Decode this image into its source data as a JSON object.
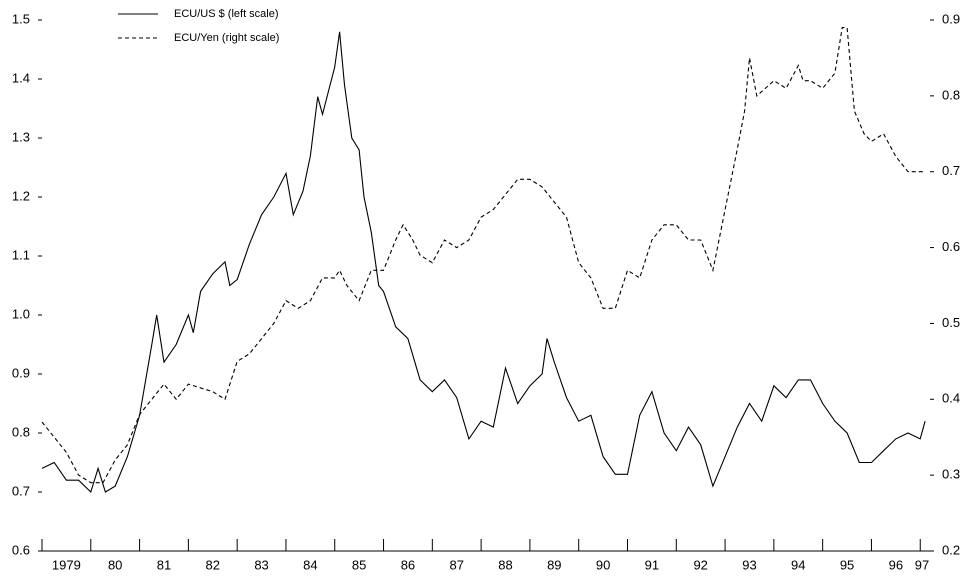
{
  "chart_data": {
    "type": "line",
    "series": [
      {
        "name": "ECU/US $ (left scale)",
        "color": "#000000",
        "linestyle": "solid",
        "axis": "y",
        "x": [
          1979.0,
          1979.25,
          1979.5,
          1979.75,
          1980.0,
          1980.15,
          1980.3,
          1980.5,
          1980.75,
          1981.0,
          1981.25,
          1981.35,
          1981.5,
          1981.75,
          1982.0,
          1982.1,
          1982.25,
          1982.5,
          1982.75,
          1982.85,
          1983.0,
          1983.25,
          1983.5,
          1983.75,
          1984.0,
          1984.15,
          1984.35,
          1984.5,
          1984.65,
          1984.75,
          1985.0,
          1985.1,
          1985.2,
          1985.35,
          1985.5,
          1985.6,
          1985.75,
          1985.9,
          1986.0,
          1986.25,
          1986.5,
          1986.75,
          1987.0,
          1987.25,
          1987.5,
          1987.75,
          1988.0,
          1988.25,
          1988.5,
          1988.75,
          1989.0,
          1989.25,
          1989.35,
          1989.5,
          1989.75,
          1990.0,
          1990.25,
          1990.5,
          1990.75,
          1991.0,
          1991.25,
          1991.5,
          1991.75,
          1992.0,
          1992.25,
          1992.5,
          1992.75,
          1993.0,
          1993.25,
          1993.5,
          1993.75,
          1994.0,
          1994.25,
          1994.5,
          1994.75,
          1995.0,
          1995.25,
          1995.5,
          1995.75,
          1996.0,
          1996.25,
          1996.5,
          1996.75,
          1997.0,
          1997.1
        ],
        "values": [
          0.74,
          0.75,
          0.72,
          0.72,
          0.7,
          0.74,
          0.7,
          0.71,
          0.76,
          0.83,
          0.95,
          1.0,
          0.92,
          0.95,
          1.0,
          0.97,
          1.04,
          1.07,
          1.09,
          1.05,
          1.06,
          1.12,
          1.17,
          1.2,
          1.24,
          1.17,
          1.21,
          1.27,
          1.37,
          1.34,
          1.42,
          1.48,
          1.39,
          1.3,
          1.28,
          1.2,
          1.14,
          1.05,
          1.04,
          0.98,
          0.96,
          0.89,
          0.87,
          0.89,
          0.86,
          0.79,
          0.82,
          0.81,
          0.91,
          0.85,
          0.88,
          0.9,
          0.96,
          0.92,
          0.86,
          0.82,
          0.83,
          0.76,
          0.73,
          0.73,
          0.83,
          0.87,
          0.8,
          0.77,
          0.81,
          0.78,
          0.71,
          0.76,
          0.81,
          0.85,
          0.82,
          0.88,
          0.86,
          0.89,
          0.89,
          0.85,
          0.82,
          0.8,
          0.75,
          0.75,
          0.77,
          0.79,
          0.8,
          0.79,
          0.82
        ]
      },
      {
        "name": "ECU/Yen (right scale)",
        "color": "#000000",
        "linestyle": "dashed",
        "axis": "y2",
        "x": [
          1979.0,
          1979.25,
          1979.5,
          1979.75,
          1980.0,
          1980.25,
          1980.5,
          1980.75,
          1981.0,
          1981.25,
          1981.5,
          1981.75,
          1982.0,
          1982.5,
          1982.75,
          1983.0,
          1983.25,
          1983.5,
          1983.75,
          1984.0,
          1984.25,
          1984.5,
          1984.75,
          1985.0,
          1985.1,
          1985.25,
          1985.5,
          1985.75,
          1986.0,
          1986.25,
          1986.4,
          1986.6,
          1986.75,
          1987.0,
          1987.25,
          1987.5,
          1987.75,
          1988.0,
          1988.25,
          1988.5,
          1988.75,
          1989.0,
          1989.25,
          1989.5,
          1989.75,
          1990.0,
          1990.25,
          1990.5,
          1990.75,
          1991.0,
          1991.25,
          1991.5,
          1991.75,
          1992.0,
          1992.25,
          1992.5,
          1992.75,
          1993.0,
          1993.25,
          1993.4,
          1993.5,
          1993.65,
          1994.0,
          1994.25,
          1994.5,
          1994.6,
          1994.75,
          1995.0,
          1995.25,
          1995.4,
          1995.5,
          1995.65,
          1995.85,
          1996.0,
          1996.25,
          1996.5,
          1996.75,
          1997.0,
          1997.1
        ],
        "values": [
          0.37,
          0.35,
          0.33,
          0.3,
          0.29,
          0.29,
          0.32,
          0.34,
          0.38,
          0.4,
          0.42,
          0.4,
          0.42,
          0.41,
          0.4,
          0.45,
          0.46,
          0.48,
          0.5,
          0.53,
          0.52,
          0.53,
          0.56,
          0.56,
          0.57,
          0.55,
          0.53,
          0.57,
          0.57,
          0.61,
          0.63,
          0.61,
          0.59,
          0.58,
          0.61,
          0.6,
          0.61,
          0.64,
          0.65,
          0.67,
          0.69,
          0.69,
          0.68,
          0.66,
          0.64,
          0.58,
          0.56,
          0.52,
          0.52,
          0.57,
          0.56,
          0.61,
          0.63,
          0.63,
          0.61,
          0.61,
          0.57,
          0.65,
          0.73,
          0.78,
          0.85,
          0.8,
          0.82,
          0.81,
          0.84,
          0.82,
          0.82,
          0.81,
          0.83,
          0.89,
          0.89,
          0.78,
          0.75,
          0.74,
          0.75,
          0.72,
          0.7,
          0.7,
          0.7
        ]
      }
    ],
    "xlim": [
      1979.0,
      1997.2
    ],
    "xticks": [
      {
        "value": 1979,
        "label": "1979"
      },
      {
        "value": 1980,
        "label": "80"
      },
      {
        "value": 1981,
        "label": "81"
      },
      {
        "value": 1982,
        "label": "82"
      },
      {
        "value": 1983,
        "label": "83"
      },
      {
        "value": 1984,
        "label": "84"
      },
      {
        "value": 1985,
        "label": "85"
      },
      {
        "value": 1986,
        "label": "86"
      },
      {
        "value": 1987,
        "label": "87"
      },
      {
        "value": 1988,
        "label": "88"
      },
      {
        "value": 1989,
        "label": "89"
      },
      {
        "value": 1990,
        "label": "90"
      },
      {
        "value": 1991,
        "label": "91"
      },
      {
        "value": 1992,
        "label": "92"
      },
      {
        "value": 1993,
        "label": "93"
      },
      {
        "value": 1994,
        "label": "94"
      },
      {
        "value": 1995,
        "label": "95"
      },
      {
        "value": 1996,
        "label": "96"
      },
      {
        "value": 1997,
        "label": "97"
      }
    ],
    "ylim": [
      0.6,
      1.5
    ],
    "yticks": [
      0.6,
      0.7,
      0.8,
      0.9,
      {
        "value": 1.0,
        "label": "1.0"
      },
      1.1,
      1.2,
      1.3,
      1.4,
      1.5
    ],
    "y2lim": [
      0.2,
      0.9
    ],
    "y2ticks": [
      0.2,
      0.3,
      0.4,
      0.5,
      0.6,
      0.7,
      0.8,
      0.9
    ],
    "legend": "top-left"
  }
}
